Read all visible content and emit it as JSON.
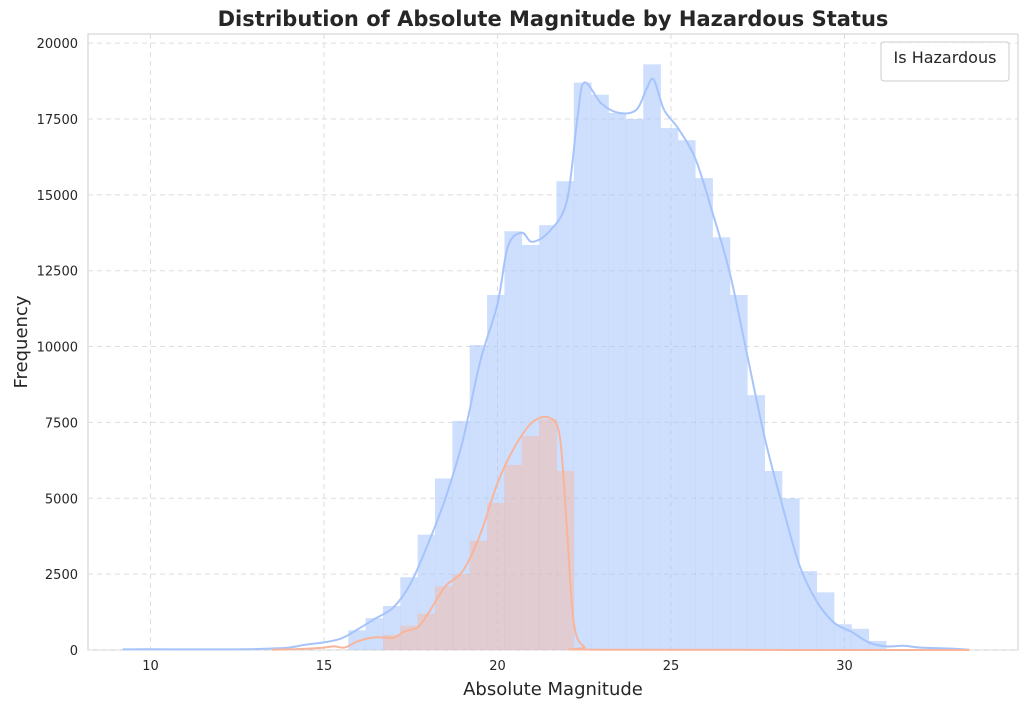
{
  "chart_data": {
    "type": "histogram",
    "title": "Distribution of Absolute Magnitude by Hazardous Status",
    "xlabel": "Absolute Magnitude",
    "ylabel": "Frequency",
    "xlim": [
      8.2,
      35.0
    ],
    "ylim": [
      0,
      20300
    ],
    "xticks": [
      10,
      15,
      20,
      25,
      30
    ],
    "yticks": [
      0,
      2500,
      5000,
      7500,
      10000,
      12500,
      15000,
      17500,
      20000
    ],
    "grid": true,
    "legend": {
      "title": "Is Hazardous",
      "position": "top-right",
      "entries": []
    },
    "bin_width": 0.5,
    "colors": {
      "non_hazardous": "#a6c4fb",
      "hazardous": "#f8b59c",
      "overlap": "#c8c9e4"
    },
    "series": [
      {
        "bars": [
          {
            "x0": 15.7,
            "y": 650
          },
          {
            "x0": 16.2,
            "y": 1050
          },
          {
            "x0": 16.7,
            "y": 1450
          },
          {
            "x0": 17.2,
            "y": 2400
          },
          {
            "x0": 17.7,
            "y": 3800
          },
          {
            "x0": 18.2,
            "y": 5650
          },
          {
            "x0": 18.7,
            "y": 7550
          },
          {
            "x0": 19.2,
            "y": 10050
          },
          {
            "x0": 19.7,
            "y": 11700
          },
          {
            "x0": 20.2,
            "y": 13800
          },
          {
            "x0": 20.7,
            "y": 13350
          },
          {
            "x0": 21.2,
            "y": 14000
          },
          {
            "x0": 21.7,
            "y": 15450
          },
          {
            "x0": 22.2,
            "y": 18700
          },
          {
            "x0": 22.7,
            "y": 18300
          },
          {
            "x0": 23.2,
            "y": 17700
          },
          {
            "x0": 23.7,
            "y": 17500
          },
          {
            "x0": 24.2,
            "y": 19300
          },
          {
            "x0": 24.7,
            "y": 17200
          },
          {
            "x0": 25.2,
            "y": 16800
          },
          {
            "x0": 25.7,
            "y": 15550
          },
          {
            "x0": 26.2,
            "y": 13600
          },
          {
            "x0": 26.7,
            "y": 11700
          },
          {
            "x0": 27.2,
            "y": 8400
          },
          {
            "x0": 27.7,
            "y": 5900
          },
          {
            "x0": 28.2,
            "y": 5000
          },
          {
            "x0": 28.7,
            "y": 2600
          },
          {
            "x0": 29.2,
            "y": 1900
          },
          {
            "x0": 29.7,
            "y": 850
          },
          {
            "x0": 30.2,
            "y": 700
          },
          {
            "x0": 30.7,
            "y": 300
          }
        ],
        "kde": [
          [
            9.2,
            20
          ],
          [
            10,
            25
          ],
          [
            11,
            20
          ],
          [
            12,
            20
          ],
          [
            13,
            30
          ],
          [
            13.5,
            50
          ],
          [
            14,
            80
          ],
          [
            14.5,
            180
          ],
          [
            15,
            250
          ],
          [
            15.5,
            380
          ],
          [
            16,
            700
          ],
          [
            16.5,
            1050
          ],
          [
            17,
            1400
          ],
          [
            17.5,
            2200
          ],
          [
            18,
            3500
          ],
          [
            18.5,
            5000
          ],
          [
            19,
            6900
          ],
          [
            19.5,
            9500
          ],
          [
            20,
            11400
          ],
          [
            20.3,
            13300
          ],
          [
            20.7,
            13750
          ],
          [
            21,
            13450
          ],
          [
            21.5,
            13800
          ],
          [
            22,
            14800
          ],
          [
            22.3,
            17500
          ],
          [
            22.5,
            18700
          ],
          [
            23,
            18000
          ],
          [
            23.5,
            17700
          ],
          [
            24,
            17800
          ],
          [
            24.3,
            18500
          ],
          [
            24.5,
            18800
          ],
          [
            24.8,
            17800
          ],
          [
            25.2,
            17200
          ],
          [
            25.7,
            16200
          ],
          [
            26.2,
            14400
          ],
          [
            26.7,
            12400
          ],
          [
            27.2,
            9700
          ],
          [
            27.7,
            7000
          ],
          [
            28.2,
            4800
          ],
          [
            28.7,
            2800
          ],
          [
            29.2,
            1600
          ],
          [
            29.7,
            900
          ],
          [
            30.2,
            600
          ],
          [
            30.7,
            250
          ],
          [
            31.2,
            120
          ],
          [
            31.7,
            140
          ],
          [
            32.2,
            80
          ],
          [
            33.0,
            50
          ],
          [
            33.6,
            10
          ]
        ]
      },
      {
        "bars": [
          {
            "x0": 16.7,
            "y": 500
          },
          {
            "x0": 17.2,
            "y": 800
          },
          {
            "x0": 17.7,
            "y": 1200
          },
          {
            "x0": 18.2,
            "y": 2100
          },
          {
            "x0": 18.7,
            "y": 2500
          },
          {
            "x0": 19.2,
            "y": 3600
          },
          {
            "x0": 19.7,
            "y": 4850
          },
          {
            "x0": 20.2,
            "y": 6100
          },
          {
            "x0": 20.7,
            "y": 7050
          },
          {
            "x0": 21.2,
            "y": 7600
          },
          {
            "x0": 21.7,
            "y": 5900
          }
        ],
        "kde": [
          [
            13.5,
            10
          ],
          [
            14,
            20
          ],
          [
            14.5,
            40
          ],
          [
            15,
            80
          ],
          [
            15.3,
            120
          ],
          [
            15.6,
            80
          ],
          [
            16,
            300
          ],
          [
            16.5,
            420
          ],
          [
            17,
            400
          ],
          [
            17.3,
            600
          ],
          [
            17.7,
            750
          ],
          [
            18,
            1200
          ],
          [
            18.5,
            2100
          ],
          [
            19,
            2600
          ],
          [
            19.5,
            3800
          ],
          [
            20,
            5500
          ],
          [
            20.5,
            6700
          ],
          [
            21,
            7500
          ],
          [
            21.5,
            7650
          ],
          [
            21.8,
            7000
          ],
          [
            22.0,
            4000
          ],
          [
            22.2,
            900
          ],
          [
            22.5,
            100
          ],
          [
            23,
            10
          ],
          [
            33.6,
            0
          ]
        ]
      }
    ]
  }
}
